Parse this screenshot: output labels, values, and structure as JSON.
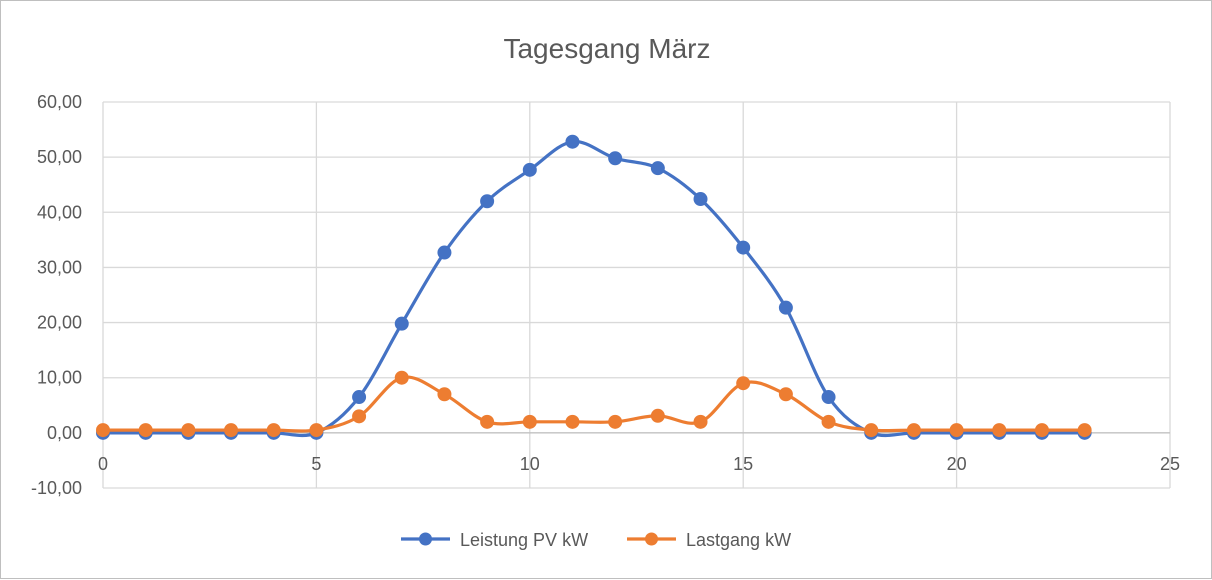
{
  "chart_data": {
    "type": "scatter",
    "title": "Tagesgang März",
    "xlabel": "",
    "ylabel": "",
    "xlim": [
      0,
      25
    ],
    "ylim": [
      -10,
      60
    ],
    "x_ticks": [
      0,
      5,
      10,
      15,
      20,
      25
    ],
    "y_ticks": [
      -10,
      0,
      10,
      20,
      30,
      40,
      50,
      60
    ],
    "y_tick_labels": [
      "-10,00",
      "0,00",
      "10,00",
      "20,00",
      "30,00",
      "40,00",
      "50,00",
      "60,00"
    ],
    "grid": true,
    "smoothed_lines": true,
    "legend_position": "bottom",
    "x": [
      0,
      1,
      2,
      3,
      4,
      5,
      6,
      7,
      8,
      9,
      10,
      11,
      12,
      13,
      14,
      15,
      16,
      17,
      18,
      19,
      20,
      21,
      22,
      23
    ],
    "series": [
      {
        "name": "Leistung PV kW",
        "color": "#4472c4",
        "values": [
          0,
          0,
          0,
          0,
          0,
          0,
          6.5,
          19.8,
          32.7,
          42.0,
          47.7,
          52.8,
          49.8,
          48.0,
          42.4,
          33.6,
          22.7,
          6.5,
          0,
          0,
          0,
          0,
          0,
          0
        ]
      },
      {
        "name": "Lastgang kW",
        "color": "#ed7d31",
        "values": [
          0.5,
          0.5,
          0.5,
          0.5,
          0.5,
          0.5,
          3.0,
          10.0,
          7.0,
          2.0,
          2.0,
          2.0,
          2.0,
          3.1,
          2.0,
          9.0,
          7.0,
          2.0,
          0.5,
          0.5,
          0.5,
          0.5,
          0.5,
          0.5
        ]
      }
    ]
  }
}
